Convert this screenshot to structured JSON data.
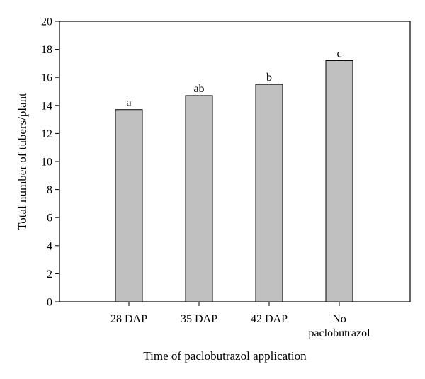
{
  "chart_data": {
    "type": "bar",
    "title": "",
    "xlabel": "Time of paclobutrazol application",
    "ylabel": "Total number of tubers/plant",
    "categories": [
      [
        "28 DAP"
      ],
      [
        "35 DAP"
      ],
      [
        "42 DAP"
      ],
      [
        "No",
        "paclobutrazol"
      ]
    ],
    "values": [
      13.7,
      14.7,
      15.5,
      17.2
    ],
    "annotations": [
      "a",
      "ab",
      "b",
      "c"
    ],
    "ylim": [
      0,
      20
    ],
    "yticks": [
      0,
      2,
      4,
      6,
      8,
      10,
      12,
      14,
      16,
      18,
      20
    ],
    "bar_color": "#c0c0c0",
    "grid": false,
    "legend": "none"
  }
}
